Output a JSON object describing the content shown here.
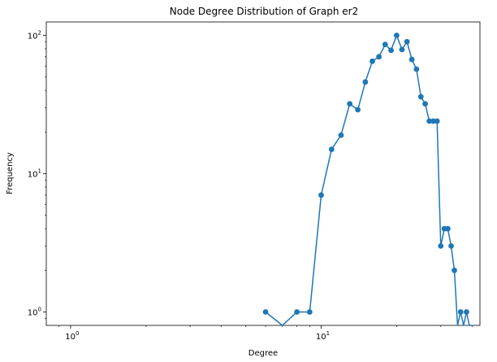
{
  "chart_data": {
    "type": "line",
    "title": "Node Degree Distribution of Graph er2",
    "xlabel": "Degree",
    "ylabel": "Frequency",
    "xscale": "log",
    "yscale": "log",
    "xlim": [
      0.8,
      43
    ],
    "ylim": [
      0.8,
      125
    ],
    "grid": false,
    "legend": "none",
    "x_ticks": [
      {
        "value": 1,
        "base": "10",
        "exp": "0"
      },
      {
        "value": 10,
        "base": "10",
        "exp": "1"
      }
    ],
    "y_ticks": [
      {
        "value": 1,
        "base": "10",
        "exp": "0"
      },
      {
        "value": 10,
        "base": "10",
        "exp": "1"
      },
      {
        "value": 100,
        "base": "10",
        "exp": "2"
      }
    ],
    "series": [
      {
        "color": "#1f77b4",
        "x": [
          6,
          7,
          8,
          9,
          10,
          11,
          12,
          13,
          14,
          15,
          16,
          17,
          18,
          19,
          20,
          21,
          22,
          23,
          24,
          25,
          26,
          27,
          28,
          29,
          30,
          31,
          32,
          33,
          34,
          35,
          36,
          37,
          38,
          39,
          40
        ],
        "y": [
          1,
          0,
          1,
          1,
          7,
          15,
          19,
          32,
          29,
          46,
          65,
          70,
          86,
          78,
          100,
          79,
          90,
          67,
          57,
          36,
          32,
          24,
          24,
          24,
          3,
          4,
          4,
          3,
          2,
          0,
          1,
          0,
          1,
          0,
          0
        ]
      }
    ]
  }
}
